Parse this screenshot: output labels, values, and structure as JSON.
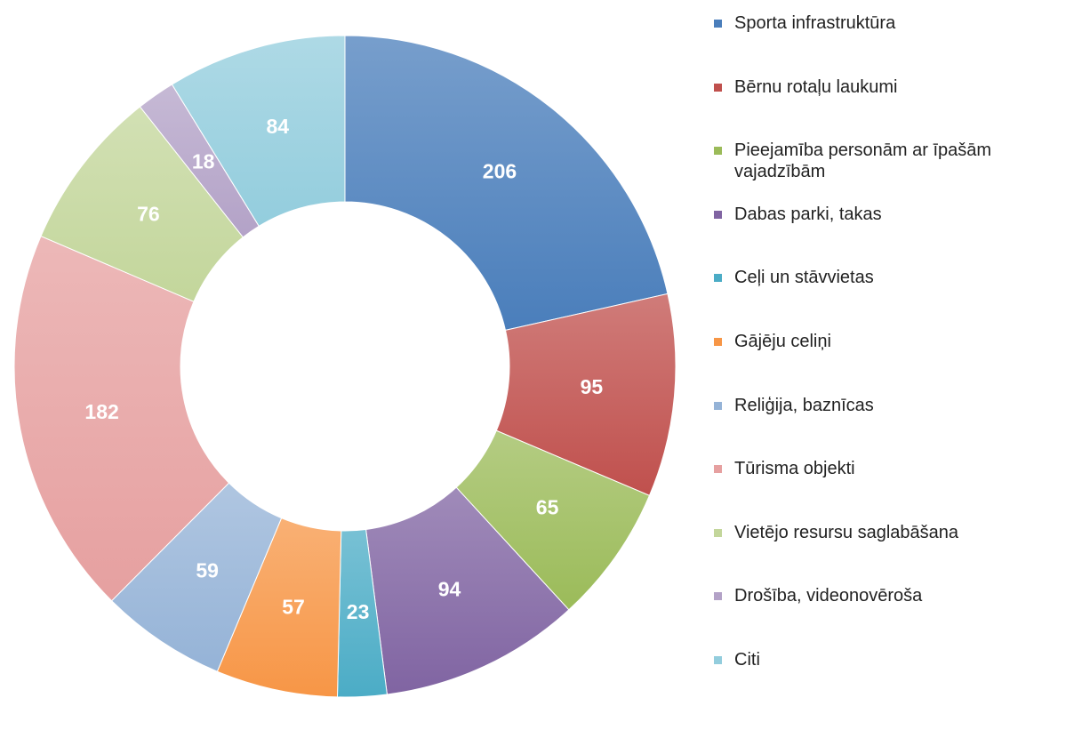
{
  "chart_data": {
    "type": "donut",
    "categories": [
      "Sporta infrastruktūra",
      "Bērnu rotaļu laukumi",
      "Pieejamība personām ar īpašām vajadzībām",
      "Dabas parki, takas",
      "Ceļi un stāvvietas",
      "Gājēju celiņi",
      "Reliģija, baznīcas",
      "Tūrisma objekti",
      "Vietējo resursu saglabāšana",
      "Drošība, videonovēroša",
      "Citi"
    ],
    "values": [
      206,
      95,
      65,
      94,
      23,
      57,
      59,
      182,
      76,
      18,
      84
    ],
    "colors": [
      "#4a7ebb",
      "#c0504d",
      "#9bbb59",
      "#8064a2",
      "#4bacc6",
      "#f79646",
      "#95b3d7",
      "#e6a0a0",
      "#c3d69b",
      "#b3a2c7",
      "#93cddd"
    ],
    "legend": "right"
  }
}
